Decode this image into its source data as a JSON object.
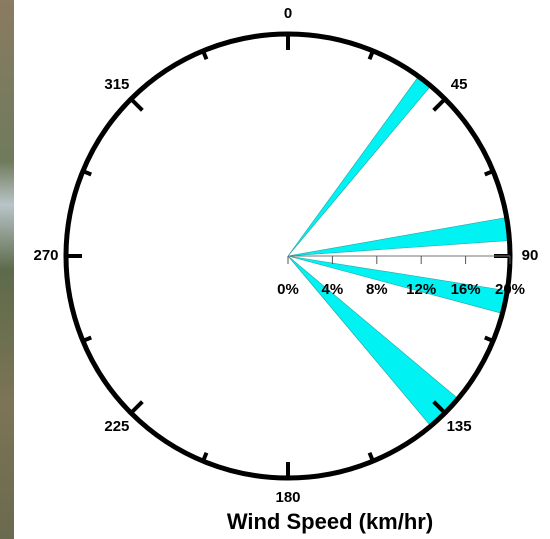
{
  "chart_data": {
    "type": "windrose",
    "title": "Wind Speed (km/hr)",
    "sectors": [
      {
        "from": 36,
        "to": 40,
        "value": 20
      },
      {
        "from": 80,
        "to": 86,
        "value": 20
      },
      {
        "from": 99,
        "to": 105,
        "value": 20
      },
      {
        "from": 130,
        "to": 140,
        "value": 20
      }
    ],
    "color": "#00f2f2",
    "rlim": [
      0,
      20
    ],
    "rticks": [
      {
        "value": 0,
        "label": "0%"
      },
      {
        "value": 4,
        "label": "4%"
      },
      {
        "value": 8,
        "label": "8%"
      },
      {
        "value": 12,
        "label": "12%"
      },
      {
        "value": 16,
        "label": "16%"
      },
      {
        "value": 20,
        "label": "20%"
      }
    ],
    "thetaticks": [
      0,
      45,
      90,
      135,
      180,
      225,
      270,
      315
    ],
    "theta_minor_ticks": [
      22.5,
      67.5,
      112.5,
      157.5,
      202.5,
      247.5,
      292.5,
      337.5
    ]
  }
}
